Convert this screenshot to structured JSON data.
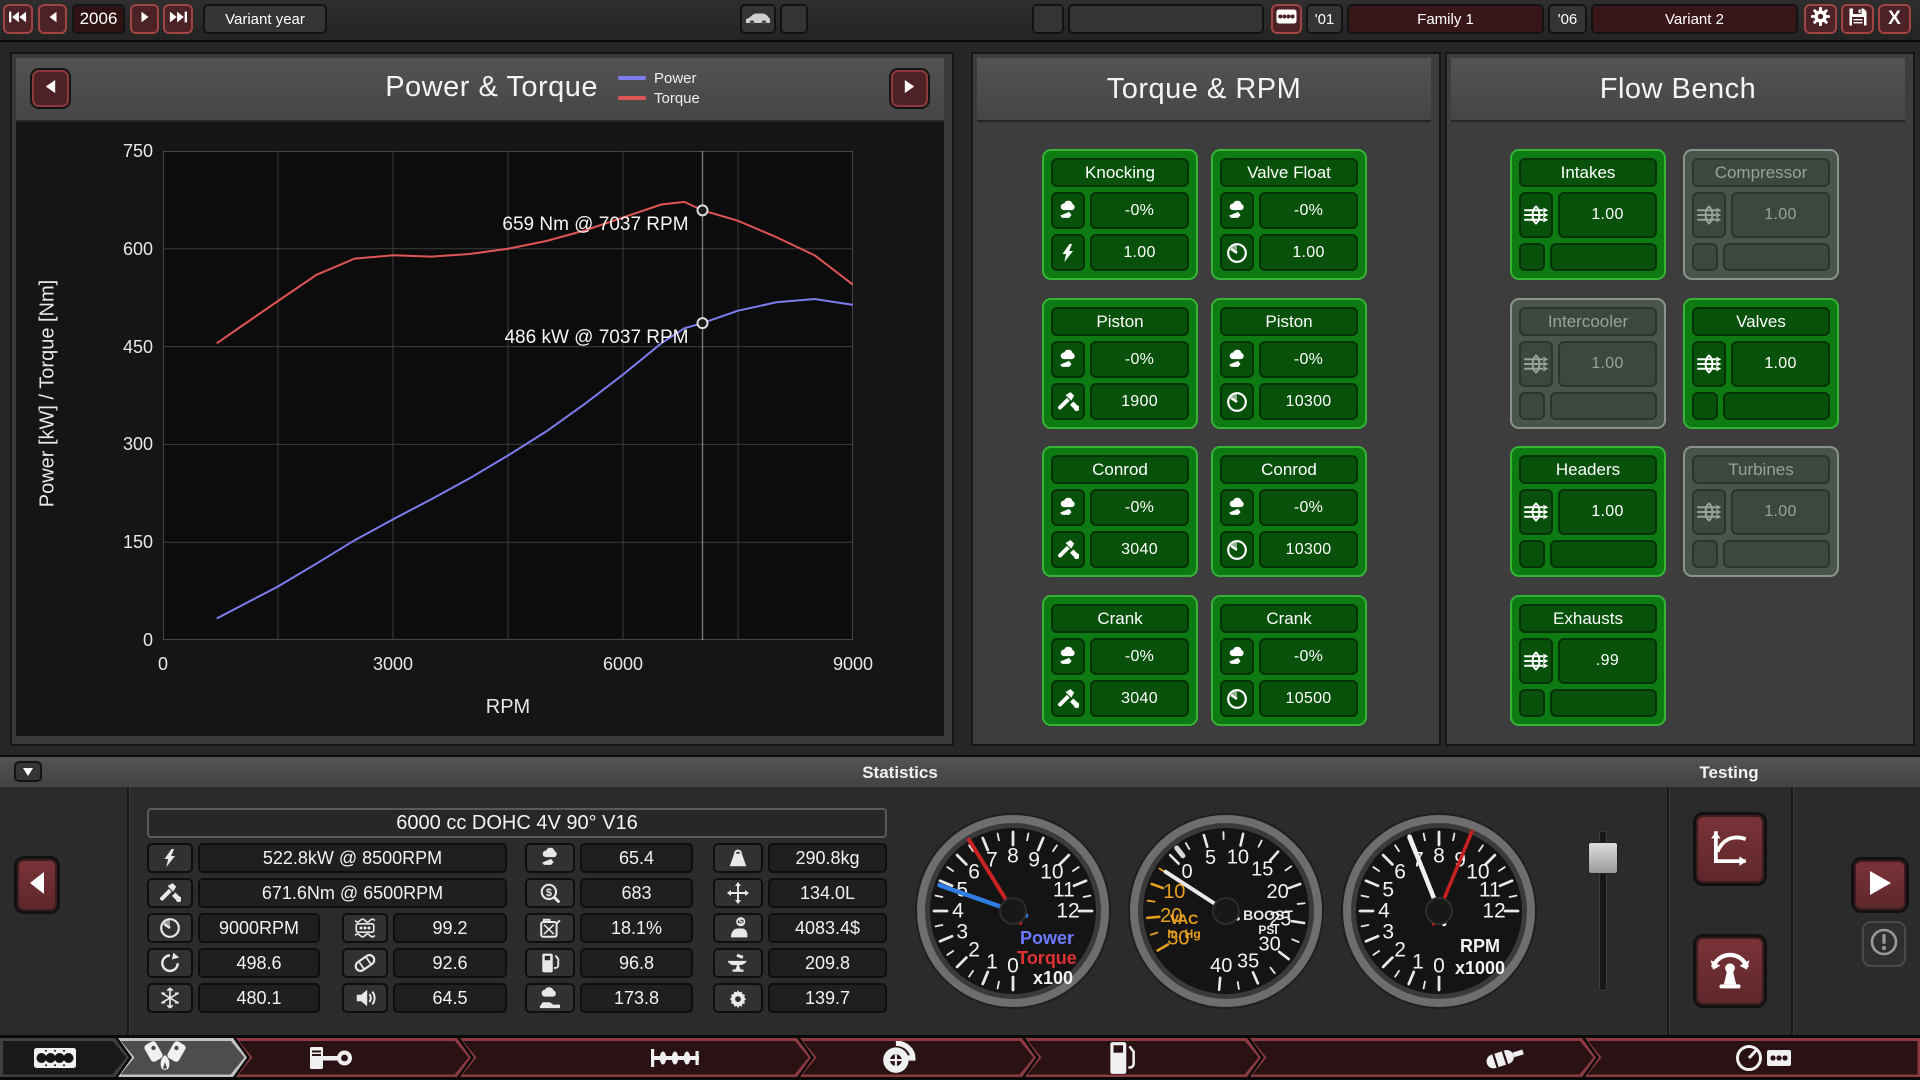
{
  "top_bar": {
    "year": "2006",
    "year_mode_label": "Variant year",
    "family_year": "'01",
    "family_name": "Family 1",
    "variant_year": "'06",
    "variant_name": "Variant 2"
  },
  "chart_panel": {
    "title": "Power & Torque",
    "legend": [
      {
        "label": "Power",
        "color": "#7d7df0"
      },
      {
        "label": "Torque",
        "color": "#e05555"
      }
    ]
  },
  "chart_data": {
    "type": "line",
    "title": "Power & Torque",
    "xlabel": "RPM",
    "ylabel": "Power [kW] / Torque [Nm]",
    "xlim": [
      0,
      9000
    ],
    "ylim": [
      0,
      750
    ],
    "x_ticks": [
      0,
      3000,
      6000,
      9000
    ],
    "y_ticks": [
      0,
      150,
      300,
      450,
      600,
      750
    ],
    "grid": true,
    "series": [
      {
        "name": "Power",
        "color": "#7d7df0",
        "points": [
          [
            700,
            33
          ],
          [
            1500,
            82
          ],
          [
            2000,
            117
          ],
          [
            2500,
            153
          ],
          [
            3000,
            185
          ],
          [
            3500,
            216
          ],
          [
            4000,
            248
          ],
          [
            4500,
            283
          ],
          [
            5000,
            320
          ],
          [
            5500,
            362
          ],
          [
            6000,
            407
          ],
          [
            6500,
            455
          ],
          [
            6800,
            478
          ],
          [
            7037,
            486
          ],
          [
            7500,
            505
          ],
          [
            8000,
            518
          ],
          [
            8500,
            523
          ],
          [
            9000,
            514
          ]
        ]
      },
      {
        "name": "Torque",
        "color": "#e05555",
        "points": [
          [
            700,
            455
          ],
          [
            1500,
            520
          ],
          [
            2000,
            560
          ],
          [
            2500,
            585
          ],
          [
            3000,
            590
          ],
          [
            3500,
            588
          ],
          [
            4000,
            592
          ],
          [
            4500,
            600
          ],
          [
            5000,
            612
          ],
          [
            5500,
            628
          ],
          [
            6000,
            648
          ],
          [
            6500,
            668
          ],
          [
            6800,
            672
          ],
          [
            7037,
            659
          ],
          [
            7500,
            643
          ],
          [
            8000,
            618
          ],
          [
            8500,
            590
          ],
          [
            9000,
            545
          ]
        ]
      }
    ],
    "cursor_rpm": 7037,
    "annotations": [
      {
        "text": "659 Nm @ 7037 RPM",
        "rpm": 7037,
        "value": 659
      },
      {
        "text": "486 kW @ 7037 RPM",
        "rpm": 7037,
        "value": 486
      }
    ]
  },
  "torque_rpm_panel": {
    "title": "Torque & RPM",
    "boxes": [
      {
        "title": "Knocking",
        "col": 0,
        "row": 0,
        "rows": [
          {
            "icon": "knock",
            "value": "-0%"
          },
          {
            "icon": "bolt",
            "value": "1.00"
          }
        ]
      },
      {
        "title": "Valve Float",
        "col": 1,
        "row": 0,
        "rows": [
          {
            "icon": "knock",
            "value": "-0%"
          },
          {
            "icon": "gauge",
            "value": "1.00"
          }
        ]
      },
      {
        "title": "Piston",
        "col": 0,
        "row": 1,
        "rows": [
          {
            "icon": "knock",
            "value": "-0%"
          },
          {
            "icon": "tools",
            "value": "1900"
          }
        ]
      },
      {
        "title": "Piston",
        "col": 1,
        "row": 1,
        "rows": [
          {
            "icon": "knock",
            "value": "-0%"
          },
          {
            "icon": "gauge",
            "value": "10300"
          }
        ]
      },
      {
        "title": "Conrod",
        "col": 0,
        "row": 2,
        "rows": [
          {
            "icon": "knock",
            "value": "-0%"
          },
          {
            "icon": "tools",
            "value": "3040"
          }
        ]
      },
      {
        "title": "Conrod",
        "col": 1,
        "row": 2,
        "rows": [
          {
            "icon": "knock",
            "value": "-0%"
          },
          {
            "icon": "gauge",
            "value": "10300"
          }
        ]
      },
      {
        "title": "Crank",
        "col": 0,
        "row": 3,
        "rows": [
          {
            "icon": "knock",
            "value": "-0%"
          },
          {
            "icon": "tools",
            "value": "3040"
          }
        ]
      },
      {
        "title": "Crank",
        "col": 1,
        "row": 3,
        "rows": [
          {
            "icon": "knock",
            "value": "-0%"
          },
          {
            "icon": "gauge",
            "value": "10500"
          }
        ]
      }
    ]
  },
  "flow_bench_panel": {
    "title": "Flow Bench",
    "boxes": [
      {
        "title": "Intakes",
        "col": 0,
        "row": 0,
        "enabled": true,
        "value": "1.00"
      },
      {
        "title": "Compressor",
        "col": 1,
        "row": 0,
        "enabled": false,
        "value": "1.00"
      },
      {
        "title": "Intercooler",
        "col": 0,
        "row": 1,
        "enabled": false,
        "value": "1.00"
      },
      {
        "title": "Valves",
        "col": 1,
        "row": 1,
        "enabled": true,
        "value": "1.00"
      },
      {
        "title": "Headers",
        "col": 0,
        "row": 2,
        "enabled": true,
        "value": "1.00"
      },
      {
        "title": "Turbines",
        "col": 1,
        "row": 2,
        "enabled": false,
        "value": "1.00"
      },
      {
        "title": "Exhausts",
        "col": 0,
        "row": 3,
        "enabled": true,
        "value": ".99"
      }
    ]
  },
  "statistics": {
    "header": "Statistics",
    "engine_name": "6000 cc DOHC 4V 90° V16",
    "left": [
      {
        "icon": "bolt",
        "value": "522.8kW @ 8500RPM"
      },
      {
        "icon": "tools",
        "value": "671.6Nm @ 6500RPM"
      },
      {
        "icon": "gauge",
        "value": "9000RPM"
      },
      {
        "icon": "radiator",
        "value": "99.2"
      },
      {
        "icon": "response",
        "value": "498.6"
      },
      {
        "icon": "muffler",
        "value": "92.6"
      },
      {
        "icon": "snowflake",
        "value": "480.1"
      },
      {
        "icon": "speaker",
        "value": "64.5"
      }
    ],
    "mid": [
      {
        "icon": "knock",
        "value": "65.4"
      },
      {
        "icon": "service",
        "value": "683"
      },
      {
        "icon": "fuelcan",
        "value": "18.1%"
      },
      {
        "icon": "pump",
        "value": "96.8"
      },
      {
        "icon": "emissions",
        "value": "173.8"
      }
    ],
    "right": [
      {
        "icon": "weight",
        "value": "290.8kg"
      },
      {
        "icon": "size",
        "value": "134.0L"
      },
      {
        "icon": "cost",
        "value": "4083.4$"
      },
      {
        "icon": "anvil",
        "value": "209.8"
      },
      {
        "icon": "gearwrench",
        "value": "139.7"
      }
    ]
  },
  "gauges": [
    {
      "id": "power-torque-gauge",
      "numbers": [
        "0",
        "1",
        "2",
        "3",
        "4",
        "5",
        "6",
        "7",
        "8",
        "9",
        "10",
        "11",
        "12"
      ],
      "labels": [
        {
          "text": "Power",
          "color": "#6b7bff"
        },
        {
          "text": "Torque",
          "color": "#e03232"
        },
        {
          "text": "x100",
          "color": "#f2f2f2"
        }
      ],
      "needles": [
        {
          "value": 6.59,
          "color": "#c92222",
          "len": 84,
          "w": 4
        },
        {
          "value": 4.86,
          "color": "#2f7de0",
          "len": 78,
          "w": 4.5
        }
      ]
    },
    {
      "id": "boost-gauge",
      "zero": "0",
      "boost_numbers": [
        "5",
        "10",
        "15",
        "20",
        "25",
        "30",
        "35",
        "40"
      ],
      "vac_numbers": [
        "10",
        "20",
        "30"
      ],
      "left_label": [
        "VAC",
        "In. Hg"
      ],
      "right_label": [
        "BOOST",
        "PSI"
      ],
      "vac_color": "#e8a020",
      "needle_angle": 303
    },
    {
      "id": "rpm-gauge",
      "numbers": [
        "0",
        "1",
        "2",
        "3",
        "4",
        "5",
        "6",
        "7",
        "8",
        "9",
        "10",
        "11",
        "12"
      ],
      "labels": [
        {
          "text": "RPM",
          "color": "#f2f2f2"
        },
        {
          "text": "x1000",
          "color": "#f2f2f2"
        }
      ],
      "needles": [
        {
          "value": 9.0,
          "color": "#c91f1f",
          "len": 86,
          "w": 3.5
        },
        {
          "value": 7.04,
          "color": "#f0f0f0",
          "len": 80,
          "w": 4.5
        }
      ]
    }
  ],
  "testing": {
    "header": "Testing"
  },
  "toolbar": {
    "tabs": [
      {
        "icon": "engineblock",
        "state": "dark"
      },
      {
        "icon": "heads",
        "state": "selected"
      },
      {
        "icon": "piston",
        "state": "red"
      },
      {
        "icon": "camshaft",
        "state": "red"
      },
      {
        "icon": "turbo",
        "state": "red"
      },
      {
        "icon": "fuelpump",
        "state": "red"
      },
      {
        "icon": "muffler2",
        "state": "red"
      },
      {
        "icon": "dyno",
        "state": "red"
      }
    ]
  }
}
